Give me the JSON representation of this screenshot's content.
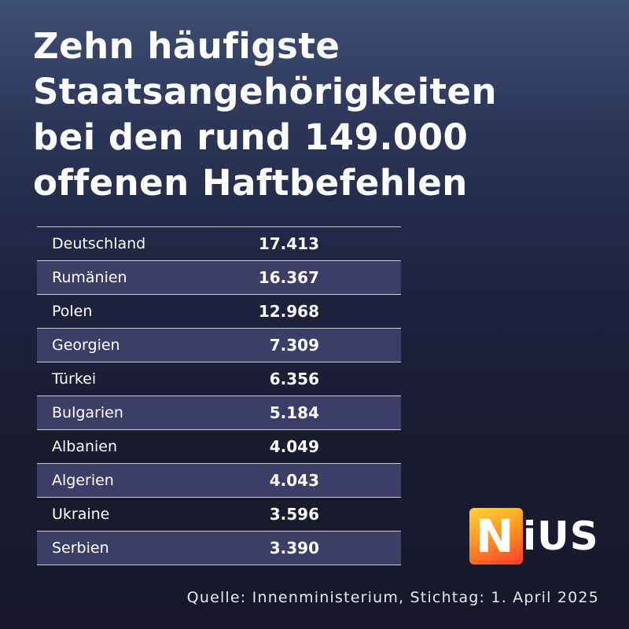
{
  "title_lines": [
    "Zehn häufigste",
    "Staatsangehörigkeiten",
    "bei den rund 149.000",
    "offenen Haftbefehlen"
  ],
  "table": {
    "rows": [
      {
        "country": "Deutschland",
        "value": "17.413"
      },
      {
        "country": "Rumänien",
        "value": "16.367"
      },
      {
        "country": "Polen",
        "value": "12.968"
      },
      {
        "country": "Georgien",
        "value": "7.309"
      },
      {
        "country": "Türkei",
        "value": "6.356"
      },
      {
        "country": "Bulgarien",
        "value": "5.184"
      },
      {
        "country": "Albanien",
        "value": "4.049"
      },
      {
        "country": "Algerien",
        "value": "4.043"
      },
      {
        "country": "Ukraine",
        "value": "3.596"
      },
      {
        "country": "Serbien",
        "value": "3.390"
      }
    ]
  },
  "logo": {
    "first": "N",
    "rest": "iUS",
    "gradient": [
      "#ffd23a",
      "#ff9a1f",
      "#ff3d2e"
    ]
  },
  "source": "Quelle: Innenministerium, Stichtag: 1. April 2025",
  "colors": {
    "row_shade": "#3b3f68",
    "divider": "#c9cbd8"
  }
}
